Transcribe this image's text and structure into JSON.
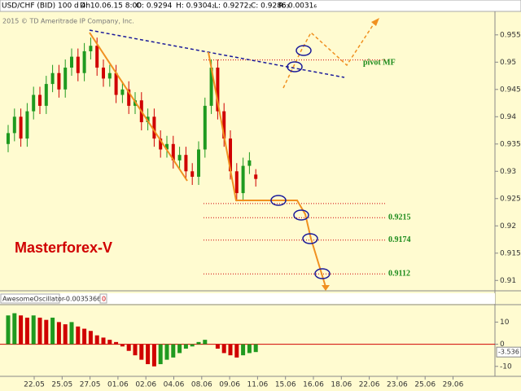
{
  "header": {
    "symbol": "USD/CHF (BID) 100 d 4h",
    "date": "D: 10.06.15 8:00",
    "open": "O: 0.9294",
    "high": "H: 0.9304₂",
    "low": "L: 0.9272₂",
    "close": "C: 0.9286₃",
    "range": "R: 0.0031₆",
    "copyright": "2015 © TD Ameritrade IP Company, Inc."
  },
  "chart_data": [
    {
      "type": "candlestick",
      "title": "Masterforex-V",
      "pivot_label": "pivot MF",
      "up_color": "#1f9a1f",
      "down_color": "#d00000",
      "ylim": [
        0.9081,
        0.9593
      ],
      "yticks": [
        0.955,
        0.95,
        0.945,
        0.94,
        0.935,
        0.93,
        0.925,
        0.92,
        0.915,
        0.91
      ],
      "x_labels": [
        "22.05",
        "25.05",
        "27.05",
        "01.06",
        "02.06",
        "04.06",
        "08.06",
        "09.06",
        "11.06",
        "15.06",
        "16.06",
        "18.06",
        "22.06",
        "23.06",
        "25.06",
        "29.06"
      ],
      "open": [
        0.935,
        0.937,
        0.94,
        0.936,
        0.941,
        0.944,
        0.942,
        0.946,
        0.948,
        0.945,
        0.949,
        0.951,
        0.948,
        0.952,
        0.953,
        0.949,
        0.947,
        0.948,
        0.944,
        0.945,
        0.942,
        0.943,
        0.939,
        0.94,
        0.936,
        0.934,
        0.935,
        0.932,
        0.933,
        0.93,
        0.929,
        0.934,
        0.942,
        0.949,
        0.941,
        0.936,
        0.93,
        0.926,
        0.931,
        0.9294
      ],
      "high": [
        0.9385,
        0.9415,
        0.9415,
        0.9425,
        0.9455,
        0.9455,
        0.9475,
        0.9495,
        0.9495,
        0.9505,
        0.9525,
        0.9525,
        0.9535,
        0.9545,
        0.9545,
        0.9505,
        0.9495,
        0.9495,
        0.9465,
        0.9465,
        0.9445,
        0.9445,
        0.9415,
        0.9415,
        0.9375,
        0.9365,
        0.9365,
        0.9345,
        0.9345,
        0.9315,
        0.9355,
        0.9435,
        0.9505,
        0.9505,
        0.9425,
        0.9375,
        0.9315,
        0.9325,
        0.9335,
        0.9304
      ],
      "low": [
        0.9335,
        0.9355,
        0.9345,
        0.9345,
        0.9395,
        0.9405,
        0.9405,
        0.9445,
        0.9435,
        0.9435,
        0.9475,
        0.9465,
        0.9465,
        0.9505,
        0.9475,
        0.9455,
        0.9455,
        0.9425,
        0.9425,
        0.9405,
        0.9405,
        0.9375,
        0.9375,
        0.9345,
        0.9325,
        0.9325,
        0.9305,
        0.9305,
        0.9285,
        0.9275,
        0.9275,
        0.9325,
        0.9405,
        0.9395,
        0.9345,
        0.9285,
        0.9245,
        0.9245,
        0.9295,
        0.9272
      ],
      "close": [
        0.937,
        0.94,
        0.936,
        0.941,
        0.944,
        0.942,
        0.946,
        0.948,
        0.945,
        0.949,
        0.951,
        0.948,
        0.952,
        0.953,
        0.949,
        0.947,
        0.948,
        0.944,
        0.945,
        0.942,
        0.943,
        0.939,
        0.94,
        0.936,
        0.934,
        0.935,
        0.932,
        0.933,
        0.93,
        0.929,
        0.934,
        0.942,
        0.949,
        0.941,
        0.936,
        0.93,
        0.926,
        0.931,
        0.932,
        0.9286
      ],
      "level_lines": [
        0.9504,
        0.9241
      ],
      "levels": [
        0.9215,
        0.9174,
        0.9112
      ],
      "level_color": "#d00000"
    },
    {
      "type": "bar",
      "title": "AwesomeOscillator",
      "value_text": "-0.0035366",
      "param": "0",
      "up_color": "#1f9a1f",
      "down_color": "#d00000",
      "ylim": [
        -14.5,
        17.5
      ],
      "yticks": [
        10,
        0,
        -10
      ],
      "values": [
        13,
        14,
        13,
        12,
        13,
        12,
        11,
        12,
        10,
        9,
        10,
        8,
        7,
        6,
        4,
        3,
        2,
        1,
        -1,
        -3,
        -5,
        -7,
        -9,
        -10,
        -9,
        -7,
        -6,
        -4,
        -2,
        -1,
        1,
        2,
        0,
        -2,
        -4,
        -5,
        -6,
        -5,
        -4,
        -3.536
      ]
    }
  ]
}
